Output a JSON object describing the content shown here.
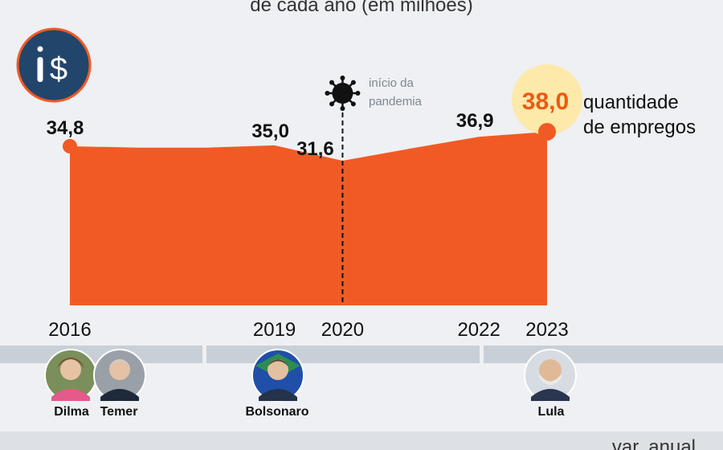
{
  "header": {
    "title_fragment": "de cada ano (em milhões)"
  },
  "badge": {
    "icon": "money-worker-icon",
    "text": "i$"
  },
  "pandemic_note": {
    "line1": "início da",
    "line2": "pandemia",
    "icon": "virus-icon"
  },
  "highlight": {
    "value_label": "38,0",
    "line1": "quantidade",
    "line2": "de empregos"
  },
  "footer": {
    "fragment": "var. anual"
  },
  "presidents": [
    {
      "name": "Dilma"
    },
    {
      "name": "Temer"
    },
    {
      "name": "Bolsonaro"
    },
    {
      "name": "Lula"
    }
  ],
  "colors": {
    "area": "#f15a24",
    "highlight_circle": "#fde9a9",
    "highlight_text": "#ec5a12",
    "badge": "#22456b",
    "band": "#c9cfd6"
  },
  "chart_data": {
    "type": "area",
    "x": [
      2016,
      2017,
      2018,
      2019,
      2020,
      2021,
      2022,
      2023
    ],
    "series": [
      {
        "values": [
          34.8,
          34.5,
          34.5,
          35.0,
          31.6,
          34.3,
          36.9,
          38.0
        ]
      }
    ],
    "data_labels": [
      {
        "x": 2016,
        "label": "34,8"
      },
      {
        "x": 2019,
        "label": "35,0"
      },
      {
        "x": 2020,
        "label": "31,6"
      },
      {
        "x": 2022,
        "label": "36,9"
      },
      {
        "x": 2023,
        "label": "38,0"
      }
    ],
    "tick_labels": [
      "2016",
      "2019",
      "2020",
      "2022",
      "2023"
    ],
    "xlim": [
      2016,
      2023
    ],
    "grid": false,
    "legend": "none"
  }
}
